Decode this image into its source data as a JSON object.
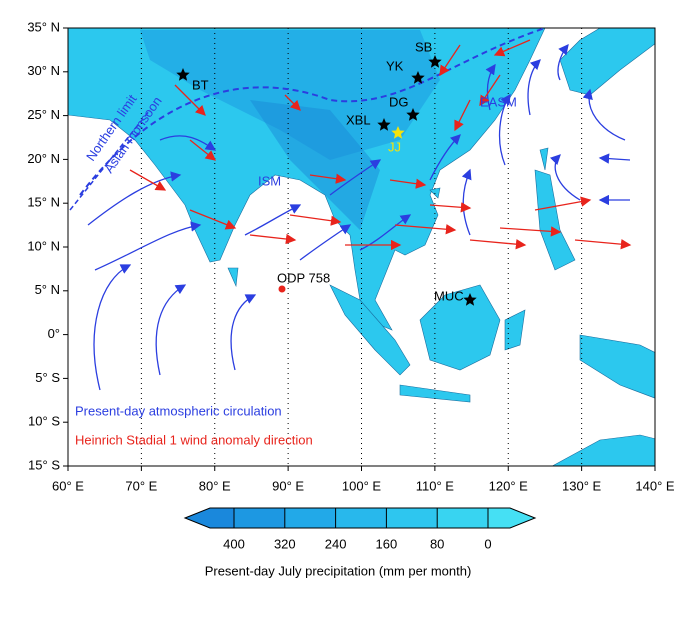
{
  "map": {
    "lon_ticks": [
      {
        "value": 60,
        "label": "60° E"
      },
      {
        "value": 70,
        "label": "70° E"
      },
      {
        "value": 80,
        "label": "80° E"
      },
      {
        "value": 90,
        "label": "90° E"
      },
      {
        "value": 100,
        "label": "100° E"
      },
      {
        "value": 110,
        "label": "110° E"
      },
      {
        "value": 120,
        "label": "120° E"
      },
      {
        "value": 130,
        "label": "130° E"
      },
      {
        "value": 140,
        "label": "140° E"
      }
    ],
    "lat_ticks": [
      {
        "value": 35,
        "label": "35° N"
      },
      {
        "value": 30,
        "label": "30° N"
      },
      {
        "value": 25,
        "label": "25° N"
      },
      {
        "value": 20,
        "label": "20° N"
      },
      {
        "value": 15,
        "label": "15° N"
      },
      {
        "value": 10,
        "label": "10° N"
      },
      {
        "value": 5,
        "label": "5° N"
      },
      {
        "value": 0,
        "label": "0°"
      },
      {
        "value": -5,
        "label": "5° S"
      },
      {
        "value": -10,
        "label": "10° S"
      },
      {
        "value": -15,
        "label": "15° S"
      }
    ],
    "sites": [
      "BT",
      "SB",
      "YK",
      "DG",
      "XBL",
      "JJ",
      "MUC",
      "ODP 758"
    ],
    "regions": [
      "ISM",
      "EASM"
    ],
    "monsoon_limit": [
      "Northern limit",
      "Asian monsoon"
    ],
    "legend": [
      "Present-day atmospheric circulation",
      "Heinrich Stadial 1 wind anomaly direction"
    ],
    "colorbar": {
      "ticks": [
        400,
        320,
        240,
        160,
        80,
        0
      ],
      "label": "Present-day July precipitation (mm per month)"
    }
  }
}
